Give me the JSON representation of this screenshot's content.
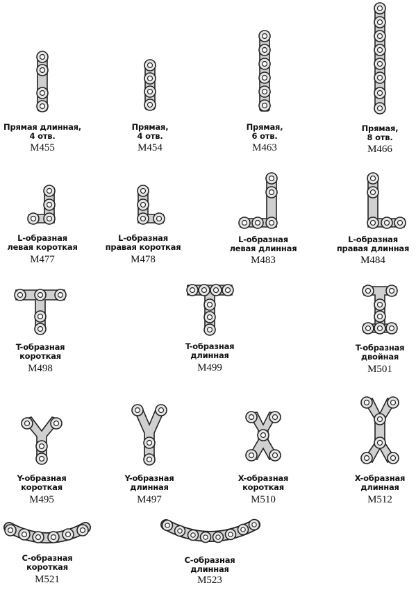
{
  "plates": [
    {
      "id": "m455",
      "lines": [
        "Прямая длинная,",
        "4 отв."
      ],
      "code": "M455"
    },
    {
      "id": "m454",
      "lines": [
        "Прямая,",
        "4 отв."
      ],
      "code": "M454"
    },
    {
      "id": "m463",
      "lines": [
        "Прямая,",
        "6 отв."
      ],
      "code": "M463"
    },
    {
      "id": "m466",
      "lines": [
        "Прямая,",
        "8 отв."
      ],
      "code": "M466"
    },
    {
      "id": "m477",
      "lines": [
        "L-образная",
        "левая короткая"
      ],
      "code": "M477"
    },
    {
      "id": "m478",
      "lines": [
        "L-образная",
        "правая короткая"
      ],
      "code": "M478"
    },
    {
      "id": "m483",
      "lines": [
        "L-образная",
        "левая длинная"
      ],
      "code": "M483"
    },
    {
      "id": "m484",
      "lines": [
        "L-образная",
        "правая длинная"
      ],
      "code": "M484"
    },
    {
      "id": "m498",
      "lines": [
        "T-образная",
        "короткая"
      ],
      "code": "M498"
    },
    {
      "id": "m499",
      "lines": [
        "T-образная",
        "длинная"
      ],
      "code": "M499"
    },
    {
      "id": "m501",
      "lines": [
        "T-образная",
        "двойная"
      ],
      "code": "M501"
    },
    {
      "id": "m495",
      "lines": [
        "Y-образная",
        "короткая"
      ],
      "code": "M495"
    },
    {
      "id": "m497",
      "lines": [
        "Y-образная",
        "длинная"
      ],
      "code": "M497"
    },
    {
      "id": "m510",
      "lines": [
        "X-образная",
        "короткая"
      ],
      "code": "M510"
    },
    {
      "id": "m512",
      "lines": [
        "X-образная",
        "длинная"
      ],
      "code": "M512"
    },
    {
      "id": "m521",
      "lines": [
        "С-образная",
        "короткая"
      ],
      "code": "M521"
    },
    {
      "id": "m523",
      "lines": [
        "С-образная",
        "длинная"
      ],
      "code": "M523"
    }
  ]
}
